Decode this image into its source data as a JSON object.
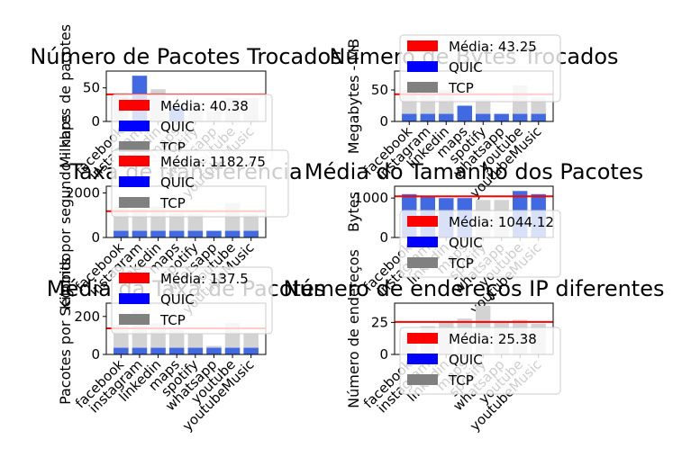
{
  "chart_data": [
    {
      "type": "bar",
      "title": "Número de Pacotes Trocados",
      "ylabel": "Milhares de pacotes",
      "ylim": [
        0,
        75
      ],
      "yticks": [
        0,
        50
      ],
      "categories": [
        "facebook",
        "instagram",
        "linkedin",
        "maps",
        "spotify",
        "whatsapp",
        "youtube",
        "youtubeMusic"
      ],
      "series": [
        {
          "name": "QUIC",
          "values": [
            0,
            68,
            0,
            22,
            0,
            0,
            0,
            0
          ]
        },
        {
          "name": "TCP",
          "values": [
            42,
            0,
            48,
            0,
            28,
            15,
            35,
            35
          ]
        }
      ],
      "mean": 40.38,
      "legend": [
        "Média: 40.38",
        "QUIC",
        "TCP"
      ],
      "legend_position": "lower-left"
    },
    {
      "type": "bar",
      "title": "Número de Bytes Trocados",
      "ylabel": "Megabytes - MB",
      "ylim": [
        0,
        80
      ],
      "yticks": [
        0,
        50
      ],
      "categories": [
        "facebook",
        "instagram",
        "linkedin",
        "maps",
        "spotify",
        "whatsapp",
        "youtube",
        "youtubeMusic"
      ],
      "series": [
        {
          "name": "QUIC",
          "values": [
            12,
            12,
            12,
            25,
            12,
            12,
            12,
            12
          ]
        },
        {
          "name": "TCP",
          "values": [
            50,
            50,
            50,
            0,
            35,
            0,
            57,
            38
          ]
        }
      ],
      "mean": 43.25,
      "legend": [
        "Média: 43.25",
        "QUIC",
        "TCP"
      ],
      "legend_position": "upper-left"
    },
    {
      "type": "bar",
      "title": "Taxa de transferência",
      "ylabel": "Kilobits por segundo - kbps",
      "ylim": [
        0,
        2300
      ],
      "yticks": [
        0,
        2000
      ],
      "categories": [
        "facebook",
        "instagram",
        "linkedin",
        "maps",
        "spotify",
        "whatsapp",
        "youtube",
        "youtubeMusic"
      ],
      "series": [
        {
          "name": "QUIC",
          "values": [
            300,
            300,
            300,
            300,
            300,
            300,
            300,
            300
          ]
        },
        {
          "name": "TCP",
          "values": [
            1400,
            1300,
            1400,
            1100,
            1050,
            300,
            1550,
            1050
          ]
        }
      ],
      "mean": 1182.75,
      "legend": [
        "Média: 1182.75",
        "QUIC",
        "TCP"
      ],
      "legend_position": "upper-left"
    },
    {
      "type": "bar",
      "title": "Média do Tamanho dos Pacotes",
      "ylabel": "Bytes",
      "ylim": [
        0,
        1300
      ],
      "yticks": [
        0,
        1000
      ],
      "categories": [
        "facebook",
        "instagram",
        "linkedin",
        "maps",
        "spotify",
        "whatsapp",
        "youtube",
        "youtubeMusic"
      ],
      "series": [
        {
          "name": "QUIC",
          "values": [
            1100,
            1050,
            1000,
            1000,
            0,
            0,
            1180,
            1100
          ]
        },
        {
          "name": "TCP",
          "values": [
            1050,
            1000,
            950,
            1000,
            950,
            950,
            1050,
            1050
          ]
        }
      ],
      "mean": 1044.12,
      "legend": [
        "Média: 1044.12",
        "QUIC",
        "TCP"
      ],
      "legend_position": "lower-left"
    },
    {
      "type": "bar",
      "title": "Média da Taxa de Pacotes",
      "ylabel": "Pacotes por Segundo",
      "ylim": [
        0,
        270
      ],
      "yticks": [
        0,
        200
      ],
      "categories": [
        "facebook",
        "instagram",
        "linkedin",
        "maps",
        "spotify",
        "whatsapp",
        "youtube",
        "youtubeMusic"
      ],
      "series": [
        {
          "name": "QUIC",
          "values": [
            35,
            35,
            35,
            35,
            35,
            35,
            35,
            35
          ]
        },
        {
          "name": "TCP",
          "values": [
            155,
            230,
            165,
            130,
            110,
            45,
            165,
            115
          ]
        }
      ],
      "mean": 137.5,
      "legend": [
        "Média: 137.5",
        "QUIC",
        "TCP"
      ],
      "legend_position": "upper-left"
    },
    {
      "type": "bar",
      "title": "Número de endereços IP diferentes",
      "ylabel": "Número de endereços",
      "ylim": [
        0,
        40
      ],
      "yticks": [
        0,
        25
      ],
      "categories": [
        "facebook",
        "instagram",
        "linkedin",
        "maps",
        "spotify",
        "whatsapp",
        "youtube",
        "youtubeMusic"
      ],
      "series": [
        {
          "name": "QUIC",
          "values": [
            0,
            0,
            0,
            0,
            0,
            0,
            0,
            0
          ]
        },
        {
          "name": "TCP",
          "values": [
            15,
            22,
            25,
            28,
            38,
            25,
            27,
            24
          ]
        }
      ],
      "mean": 25.38,
      "legend": [
        "Média: 25.38",
        "QUIC",
        "TCP"
      ],
      "legend_position": "lower-left"
    }
  ],
  "colors": {
    "quic": "#4169e1",
    "tcp": "#d3d3d3",
    "mean": "#ff0000",
    "legend_quic": "#0000ff",
    "legend_tcp": "#808080"
  }
}
